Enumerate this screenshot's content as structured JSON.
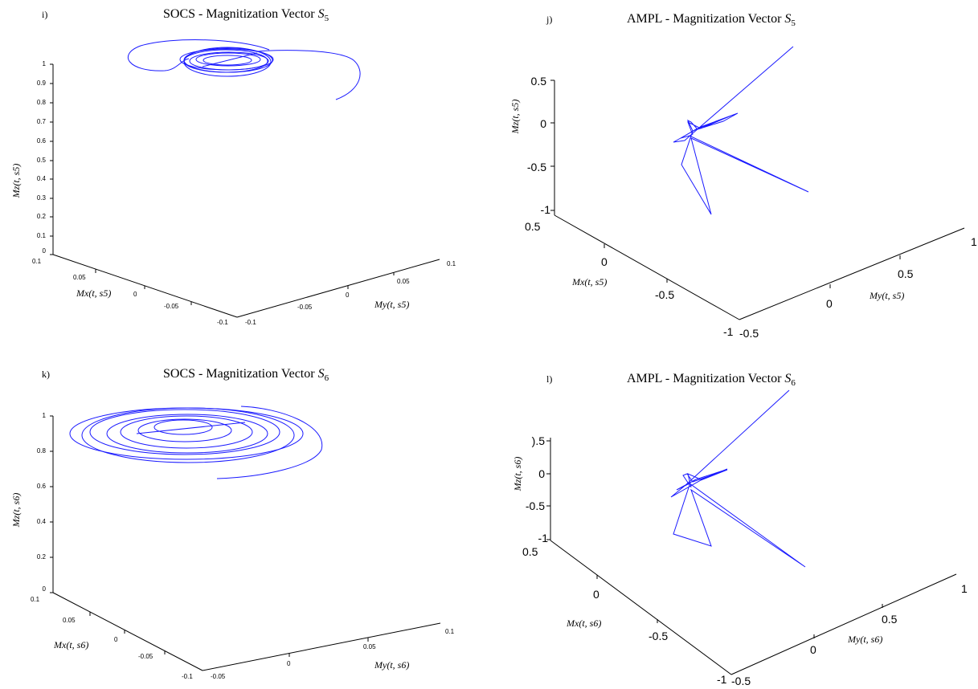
{
  "chart_data": [
    {
      "type": "line",
      "panel_label": "i)",
      "title": "SOCS - Magnitization Vector ",
      "title_symbol": "S",
      "title_sub": "5",
      "xlabel": "Mx(t, s5)",
      "ylabel": "My(t, s5)",
      "zlabel": "Mz(t, s5)",
      "z_ticks": [
        "0",
        "0.1",
        "0.2",
        "0.3",
        "0.4",
        "0.5",
        "0.6",
        "0.7",
        "0.8",
        "0.9",
        "1"
      ],
      "x_ticks": [
        "0.1",
        "0.05",
        "0",
        "-0.05",
        "-0.1"
      ],
      "y_ticks": [
        "-0.1",
        "-0.05",
        "0",
        "0.05",
        "0.1"
      ],
      "xlim": [
        -0.1,
        0.1
      ],
      "ylim": [
        -0.1,
        0.1
      ],
      "zlim": [
        0,
        1
      ],
      "series": [
        {
          "values": []
        }
      ]
    },
    {
      "type": "line",
      "panel_label": "j)",
      "title": "AMPL - Magnitization Vector ",
      "title_symbol": "S",
      "title_sub": "5",
      "xlabel": "Mx(t, s5)",
      "ylabel": "My(t, s5)",
      "zlabel": "Mz(t, s5)",
      "z_ticks": [
        "0.5",
        "0",
        "-0.5",
        "-1"
      ],
      "x_ticks": [
        "0.5",
        "0",
        "-0.5",
        "-1"
      ],
      "y_ticks": [
        "-0.5",
        "0",
        "0.5",
        "1"
      ],
      "xlim": [
        -1,
        0.5
      ],
      "ylim": [
        -0.5,
        1
      ],
      "zlim": [
        -1,
        0.5
      ],
      "series": [
        {
          "values": []
        }
      ]
    },
    {
      "type": "line",
      "panel_label": "k)",
      "title": "SOCS - Magnitization Vector ",
      "title_symbol": "S",
      "title_sub": "6",
      "xlabel": "Mx(t, s6)",
      "ylabel": "My(t, s6)",
      "zlabel": "Mz(t, s6)",
      "z_ticks": [
        "0",
        "0.2",
        "0.4",
        "0.6",
        "0.8",
        "1"
      ],
      "x_ticks": [
        "0.1",
        "0.05",
        "0",
        "-0.05",
        "-0.1"
      ],
      "y_ticks": [
        "-0.05",
        "0",
        "0.05",
        "0.1"
      ],
      "xlim": [
        -0.1,
        0.1
      ],
      "ylim": [
        -0.05,
        0.1
      ],
      "zlim": [
        0,
        1
      ],
      "series": [
        {
          "values": []
        }
      ]
    },
    {
      "type": "line",
      "panel_label": "l)",
      "title": "AMPL - Magnitization Vector ",
      "title_symbol": "S",
      "title_sub": "6",
      "xlabel": "Mx(t, s6)",
      "ylabel": "My(t, s6)",
      "zlabel": "Mz(t, s6)",
      "z_ticks": [
        ").5",
        "0",
        "-0.5",
        "-1"
      ],
      "x_ticks": [
        "0.5",
        "0",
        "-0.5",
        "-1"
      ],
      "y_ticks": [
        "-0.5",
        "0",
        "0.5",
        "1"
      ],
      "xlim": [
        -1,
        0.5
      ],
      "ylim": [
        -0.5,
        1
      ],
      "zlim": [
        -1,
        0.5
      ],
      "series": [
        {
          "values": []
        }
      ]
    }
  ],
  "colors": {
    "trajectory": "#1a1aff",
    "axes": "#000000"
  }
}
